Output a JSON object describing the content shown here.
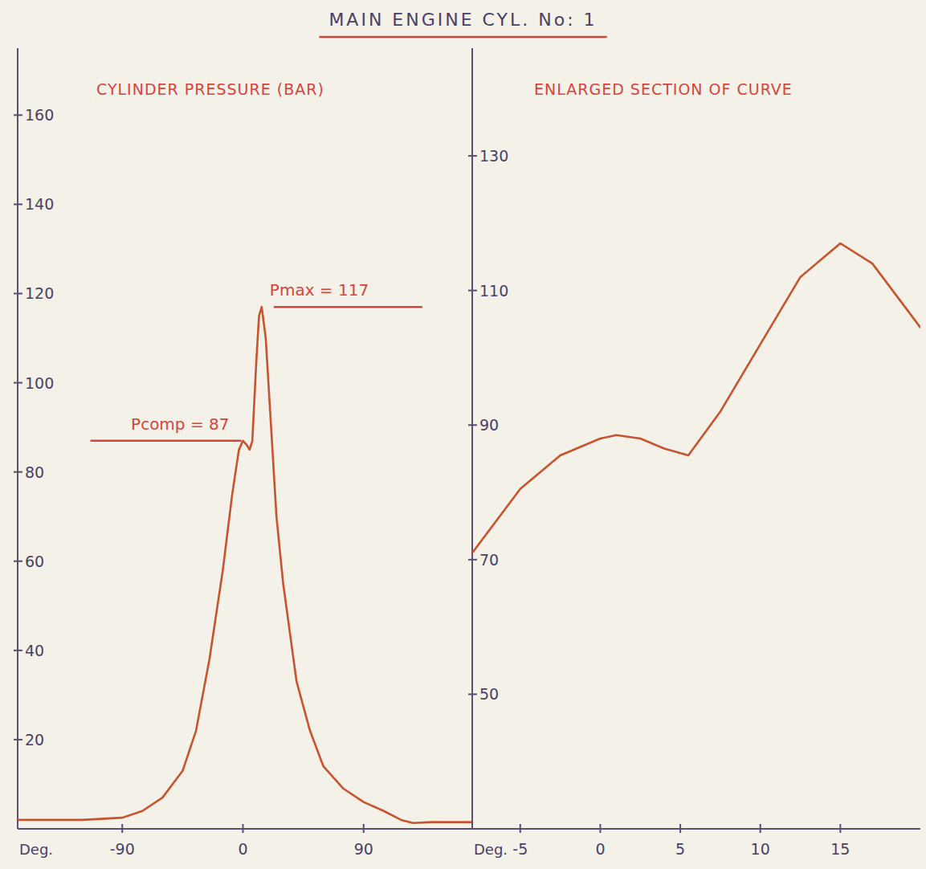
{
  "title": "MAIN ENGINE CYL. No: 1",
  "chart_data": [
    {
      "type": "line",
      "title": "CYLINDER PRESSURE (BAR)",
      "xlabel": "Deg.",
      "color": "#c9532e",
      "x": [
        -168,
        -120,
        -90,
        -75,
        -60,
        -45,
        -35,
        -25,
        -15,
        -8,
        -3,
        0,
        3,
        5,
        7,
        10,
        12,
        14,
        17,
        20,
        25,
        30,
        40,
        50,
        60,
        75,
        90,
        105,
        118,
        127,
        140,
        171
      ],
      "values": [
        2,
        2,
        2.5,
        4,
        7,
        13,
        22,
        38,
        58,
        75,
        85,
        87,
        86,
        85,
        87,
        105,
        115,
        117,
        110,
        95,
        70,
        55,
        33,
        22,
        14,
        9,
        6,
        4,
        2,
        1.3,
        1.5,
        1.5
      ],
      "xlim": [
        -168,
        171
      ],
      "ylim": [
        0,
        175
      ],
      "xticks": [
        -90,
        0,
        90
      ],
      "yticks": [
        20,
        40,
        60,
        80,
        100,
        120,
        140,
        160
      ],
      "annotations": [
        {
          "text": "Pmax = 117",
          "x": 14,
          "y": 117,
          "side": "right"
        },
        {
          "text": "Pcomp = 87",
          "x": 0,
          "y": 87,
          "side": "left"
        }
      ]
    },
    {
      "type": "line",
      "title": "ENLARGED SECTION OF CURVE",
      "xlabel": "Deg.",
      "color": "#c9532e",
      "x": [
        -8,
        -5,
        -2.5,
        0,
        1,
        2.5,
        4,
        5.5,
        7.5,
        10,
        12.5,
        15,
        17,
        20
      ],
      "values": [
        71,
        80.5,
        85.5,
        88,
        88.5,
        88,
        86.5,
        85.5,
        92,
        102,
        112,
        117,
        114,
        104.5
      ],
      "xlim": [
        -8,
        20
      ],
      "ylim": [
        30,
        146
      ],
      "xticks": [
        -5,
        0,
        5,
        10,
        15
      ],
      "yticks": [
        50,
        70,
        90,
        110,
        130
      ]
    }
  ]
}
